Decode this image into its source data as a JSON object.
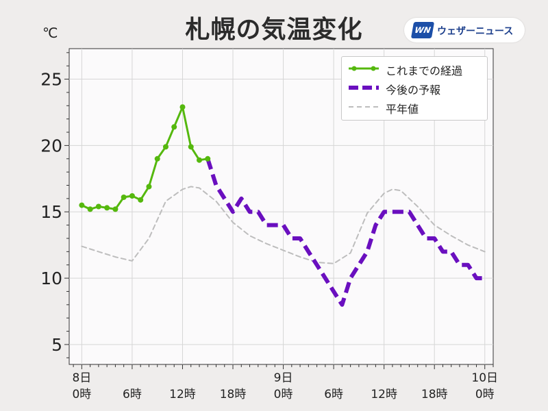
{
  "title": "札幌の気温変化",
  "unit": "℃",
  "brand": {
    "name": "ウェザーニュース",
    "logo_text": "WN",
    "logo_color": "#1c4fa8"
  },
  "legend": {
    "placement": "top-right",
    "entries": [
      {
        "label": "これまでの経過",
        "color": "#55b80e",
        "style": "solid-with-markers"
      },
      {
        "label": "今後の予報",
        "color": "#6a0fbf",
        "style": "dashed-thick"
      },
      {
        "label": "平年値",
        "color": "#bdbdbd",
        "style": "dashed-thin"
      }
    ]
  },
  "chart_data": {
    "type": "line",
    "ylim": [
      3.5,
      27.3
    ],
    "yticks": [
      5,
      10,
      15,
      20,
      25
    ],
    "xlim": [
      -1.5,
      49
    ],
    "grid": true,
    "xticks": [
      {
        "hour": 0,
        "line1": "8日",
        "line2": "0時"
      },
      {
        "hour": 6,
        "line1": "",
        "line2": "6時"
      },
      {
        "hour": 12,
        "line1": "",
        "line2": "12時"
      },
      {
        "hour": 18,
        "line1": "",
        "line2": "18時"
      },
      {
        "hour": 24,
        "line1": "9日",
        "line2": "0時"
      },
      {
        "hour": 30,
        "line1": "",
        "line2": "6時"
      },
      {
        "hour": 36,
        "line1": "",
        "line2": "12時"
      },
      {
        "hour": 42,
        "line1": "",
        "line2": "18時"
      },
      {
        "hour": 48,
        "line1": "10日",
        "line2": "0時"
      }
    ],
    "series": [
      {
        "name": "これまでの経過",
        "color": "#55b80e",
        "x": [
          0,
          1,
          2,
          3,
          4,
          5,
          6,
          7,
          8,
          9,
          10,
          11,
          12,
          13,
          14,
          15
        ],
        "y": [
          15.5,
          15.2,
          15.4,
          15.3,
          15.2,
          16.1,
          16.2,
          15.9,
          16.9,
          19.0,
          19.9,
          21.4,
          22.9,
          19.9,
          18.9,
          19.0
        ]
      },
      {
        "name": "今後の予報",
        "color": "#6a0fbf",
        "x": [
          15,
          16,
          17,
          18,
          19,
          20,
          21,
          22,
          23,
          24,
          25,
          26,
          27,
          28,
          29,
          30,
          31,
          32,
          33,
          34,
          35,
          36,
          37,
          38,
          39,
          40,
          41,
          42,
          43,
          44,
          45,
          46,
          47,
          48
        ],
        "y": [
          19.0,
          17.0,
          16.0,
          15.0,
          16.0,
          15.0,
          15.0,
          14.0,
          14.0,
          14.0,
          13.0,
          13.0,
          12.0,
          11.0,
          10.0,
          9.0,
          8.0,
          10.0,
          11.0,
          12.0,
          14.0,
          15.0,
          15.0,
          15.0,
          15.0,
          14.0,
          13.0,
          13.0,
          12.0,
          12.0,
          11.0,
          11.0,
          10.0,
          10.0
        ]
      },
      {
        "name": "平年値",
        "color": "#bdbdbd",
        "x": [
          0,
          2,
          4,
          6,
          8,
          10,
          12,
          13,
          14,
          16,
          18,
          20,
          22,
          24,
          26,
          28,
          30,
          32,
          34,
          36,
          37,
          38,
          40,
          42,
          44,
          46,
          48
        ],
        "y": [
          12.4,
          12.0,
          11.6,
          11.3,
          13.0,
          15.8,
          16.7,
          16.9,
          16.8,
          15.8,
          14.2,
          13.2,
          12.6,
          12.1,
          11.6,
          11.2,
          11.1,
          11.9,
          14.9,
          16.4,
          16.7,
          16.6,
          15.4,
          14.0,
          13.2,
          12.5,
          12.0
        ]
      }
    ]
  }
}
